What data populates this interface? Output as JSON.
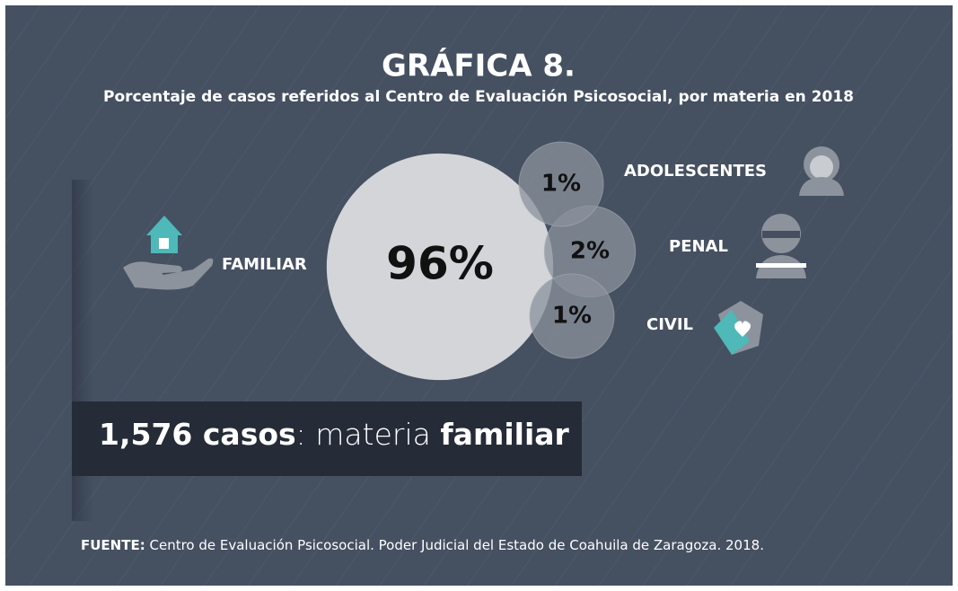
{
  "chart_data": {
    "type": "bubble",
    "title": "GRÁFICA 8.",
    "subtitle": "Porcentaje de casos referidos al Centro de Evaluación Psicosocial, por materia en 2018",
    "categories": [
      "FAMILIAR",
      "ADOLESCENTES",
      "PENAL",
      "CIVIL"
    ],
    "values": [
      96,
      1,
      2,
      1
    ],
    "value_labels": [
      "96%",
      "1%",
      "2%",
      "1%"
    ],
    "colors": [
      "#d3d5d9",
      "#8b919c",
      "#8b919c",
      "#8b919c"
    ],
    "annotation": {
      "count": "1,576 casos",
      "middle": ": materia ",
      "subject": "familiar"
    },
    "source": {
      "label": "FUENTE:",
      "text": " Centro de Evaluación Psicosocial. Poder Judicial del Estado de Coahuila de Zaragoza. 2018."
    }
  }
}
